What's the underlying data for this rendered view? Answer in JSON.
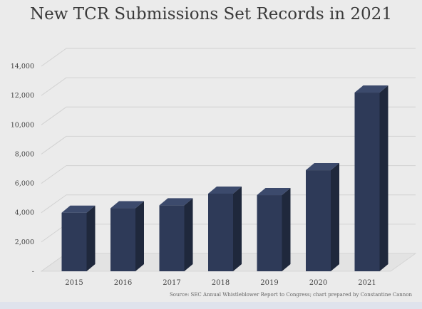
{
  "chart_data": {
    "type": "bar",
    "title": "New TCR Submissions Set Records in 2021",
    "categories": [
      "2015",
      "2016",
      "2017",
      "2018",
      "2019",
      "2020",
      "2021"
    ],
    "values": [
      4000,
      4300,
      4500,
      5300,
      5200,
      6900,
      12200
    ],
    "y_ticks": [
      0,
      2000,
      4000,
      6000,
      8000,
      10000,
      12000,
      14000
    ],
    "y_tick_labels": [
      "-",
      "2,000",
      "4,000",
      "6,000",
      "8,000",
      "10,000",
      "12,000",
      "14,000"
    ],
    "ylim": [
      0,
      14000
    ],
    "xlabel": "",
    "ylabel": "",
    "grid": true,
    "style": "3d-column",
    "source": "Source: SEC Annual Whistleblower Report to Congress; chart prepared by Constantine Cannon",
    "colors": {
      "bar_front": "#2e3a58",
      "bar_side": "#1f283c",
      "bar_top": "#3c4a6c",
      "background": "#ebebeb",
      "grid": "#d2d2d2",
      "text": "#444444"
    }
  }
}
